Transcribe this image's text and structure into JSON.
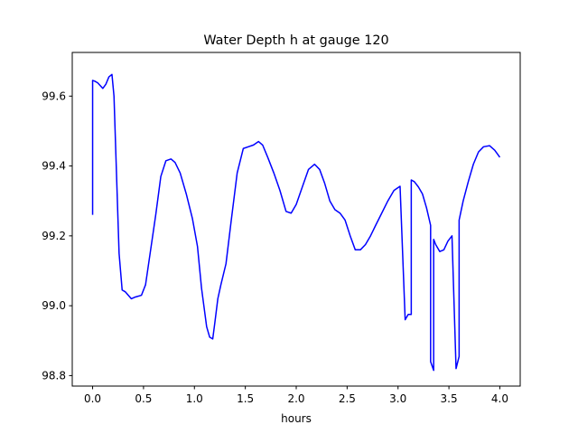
{
  "chart_data": {
    "type": "line",
    "title": "Water Depth h at gauge 120",
    "xlabel": "hours",
    "ylabel": "",
    "xlim": [
      -0.2,
      4.2
    ],
    "ylim": [
      98.77,
      99.725
    ],
    "grid": false,
    "xticks": [
      0.0,
      0.5,
      1.0,
      1.5,
      2.0,
      2.5,
      3.0,
      3.5,
      4.0
    ],
    "xtick_labels": [
      "0.0",
      "0.5",
      "1.0",
      "1.5",
      "2.0",
      "2.5",
      "3.0",
      "3.5",
      "4.0"
    ],
    "yticks": [
      98.8,
      99.0,
      99.2,
      99.4,
      99.6
    ],
    "ytick_labels": [
      "98.8",
      "99.0",
      "99.2",
      "99.4",
      "99.6"
    ],
    "series": [
      {
        "color": "#0000ff",
        "x": [
          0.0,
          0.0,
          0.02,
          0.05,
          0.1,
          0.13,
          0.16,
          0.19,
          0.21,
          0.23,
          0.26,
          0.29,
          0.32,
          0.35,
          0.38,
          0.42,
          0.48,
          0.52,
          0.57,
          0.62,
          0.67,
          0.72,
          0.77,
          0.81,
          0.86,
          0.92,
          0.98,
          1.03,
          1.07,
          1.12,
          1.15,
          1.18,
          1.2,
          1.23,
          1.26,
          1.31,
          1.36,
          1.42,
          1.48,
          1.53,
          1.58,
          1.63,
          1.67,
          1.72,
          1.78,
          1.84,
          1.9,
          1.95,
          2.0,
          2.06,
          2.12,
          2.18,
          2.23,
          2.28,
          2.33,
          2.38,
          2.43,
          2.48,
          2.53,
          2.58,
          2.63,
          2.68,
          2.73,
          2.78,
          2.84,
          2.9,
          2.96,
          3.02,
          3.07,
          3.07,
          3.1,
          3.13,
          3.13,
          3.16,
          3.2,
          3.24,
          3.28,
          3.32,
          3.32,
          3.35,
          3.35,
          3.37,
          3.41,
          3.45,
          3.49,
          3.53,
          3.57,
          3.57,
          3.6,
          3.6,
          3.64,
          3.69,
          3.74,
          3.79,
          3.84,
          3.9,
          3.95,
          4.0
        ],
        "y": [
          99.26,
          99.645,
          99.643,
          99.638,
          99.622,
          99.634,
          99.655,
          99.662,
          99.6,
          99.42,
          99.15,
          99.045,
          99.04,
          99.03,
          99.02,
          99.025,
          99.03,
          99.06,
          99.16,
          99.26,
          99.37,
          99.415,
          99.42,
          99.41,
          99.38,
          99.32,
          99.25,
          99.17,
          99.05,
          98.94,
          98.91,
          98.905,
          98.95,
          99.02,
          99.06,
          99.12,
          99.24,
          99.38,
          99.45,
          99.455,
          99.46,
          99.47,
          99.46,
          99.425,
          99.38,
          99.33,
          99.27,
          99.265,
          99.29,
          99.34,
          99.39,
          99.405,
          99.39,
          99.35,
          99.3,
          99.275,
          99.265,
          99.245,
          99.2,
          99.16,
          99.16,
          99.175,
          99.2,
          99.23,
          99.265,
          99.3,
          99.33,
          99.342,
          98.96,
          98.96,
          98.975,
          98.975,
          99.36,
          99.355,
          99.34,
          99.32,
          99.28,
          99.23,
          98.84,
          98.815,
          99.19,
          99.175,
          99.155,
          99.16,
          99.185,
          99.2,
          98.82,
          98.82,
          98.855,
          99.245,
          99.3,
          99.355,
          99.405,
          99.44,
          99.455,
          99.458,
          99.445,
          99.425
        ]
      }
    ]
  }
}
